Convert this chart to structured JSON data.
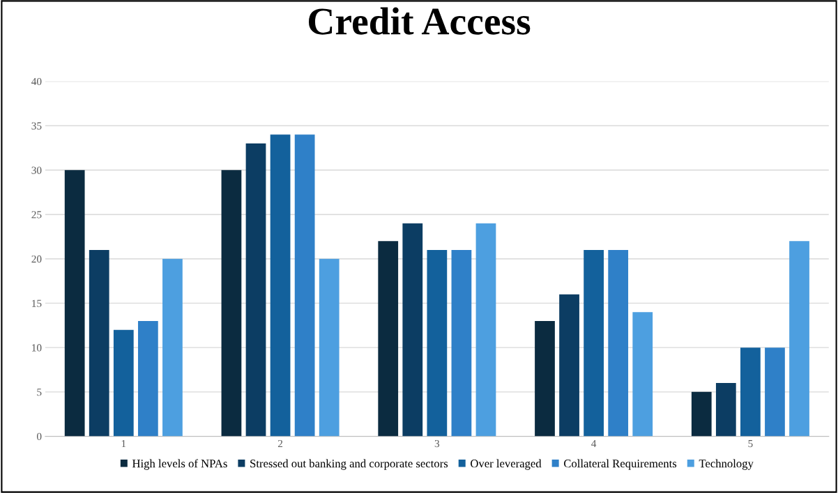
{
  "chart_data": {
    "type": "bar",
    "title": "Credit Access",
    "categories": [
      "1",
      "2",
      "3",
      "4",
      "5"
    ],
    "series": [
      {
        "name": "High levels of NPAs",
        "color": "#0b2b40",
        "values": [
          30,
          30,
          22,
          13,
          5
        ]
      },
      {
        "name": "Stressed out banking and corporate sectors",
        "color": "#0c3d63",
        "values": [
          21,
          33,
          24,
          16,
          6
        ]
      },
      {
        "name": "Over leveraged",
        "color": "#13619c",
        "values": [
          12,
          34,
          21,
          21,
          10
        ]
      },
      {
        "name": "Collateral Requirements",
        "color": "#2f80c8",
        "values": [
          13,
          34,
          21,
          21,
          10
        ]
      },
      {
        "name": "Technology",
        "color": "#4d9fe0",
        "values": [
          20,
          20,
          24,
          14,
          22
        ]
      }
    ],
    "ylim": [
      0,
      40
    ],
    "yticks": [
      0,
      5,
      10,
      15,
      20,
      25,
      30,
      35,
      40
    ],
    "grid": "y",
    "legend": "bottom"
  }
}
